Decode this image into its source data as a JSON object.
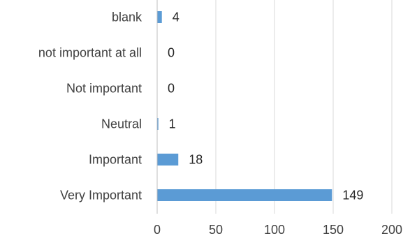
{
  "chart_data": {
    "type": "bar",
    "orientation": "horizontal",
    "categories": [
      "blank",
      "not important at all",
      "Not important",
      "Neutral",
      "Important",
      "Very Important"
    ],
    "values": [
      4,
      0,
      0,
      1,
      18,
      149
    ],
    "xlim": [
      0,
      200
    ],
    "xticks": [
      0,
      50,
      100,
      150,
      200
    ],
    "grid": "vertical",
    "legend": "none",
    "title": "",
    "xlabel": "",
    "ylabel": "",
    "colors": {
      "bar": "#5b9bd5",
      "grid": "#d9d9d9",
      "axis": "#bfbfbf"
    }
  }
}
